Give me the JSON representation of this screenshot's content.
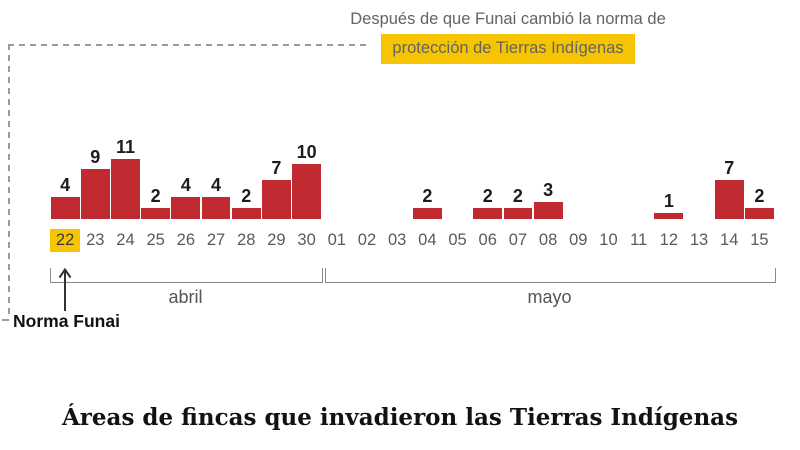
{
  "annotation": {
    "line1": "Después de que Funai cambió la norma de",
    "line2_highlighted": "protección de Tierras Indígenas"
  },
  "callout": {
    "label": "Norma Funai",
    "points_to_category": "22"
  },
  "footer_title": "Áreas de fincas que invadieron las Tierras Indígenas",
  "colors": {
    "bar_red": "#c22a31",
    "highlight_yellow": "#f6c400",
    "annotation_gray": "#636363",
    "value_label_dark": "#1d1d1d"
  },
  "chart_data": {
    "type": "bar",
    "categories": [
      "22",
      "23",
      "24",
      "25",
      "26",
      "27",
      "28",
      "29",
      "30",
      "01",
      "02",
      "03",
      "04",
      "05",
      "06",
      "07",
      "08",
      "09",
      "10",
      "11",
      "12",
      "13",
      "14",
      "15"
    ],
    "values": [
      4,
      9,
      11,
      2,
      4,
      4,
      2,
      7,
      10,
      0,
      0,
      0,
      2,
      0,
      2,
      2,
      3,
      0,
      0,
      0,
      1,
      0,
      7,
      2
    ],
    "highlighted_category": "22",
    "value_labels_shown": true,
    "grid": false,
    "ylim": [
      0,
      11
    ],
    "month_groups": [
      {
        "label": "abril",
        "categories_span": [
          "22",
          "30"
        ],
        "slot_count": 9
      },
      {
        "label": "mayo",
        "categories_span": [
          "01",
          "15"
        ],
        "slot_count": 15
      }
    ],
    "title": "Áreas de fincas que invadieron las Tierras Indígenas",
    "annotation": "Después de que Funai cambió la norma de protección de Tierras Indígenas",
    "callout": "Norma Funai"
  }
}
